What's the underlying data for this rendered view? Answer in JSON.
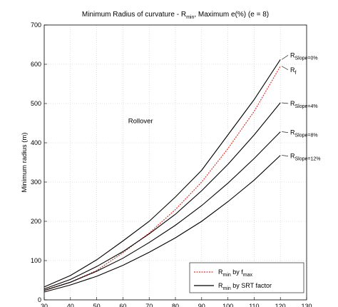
{
  "chart_data": {
    "type": "line",
    "title_parts": [
      "Minimum Radius of curvature - R",
      "min",
      ", Maximum e(%) (e = 8)"
    ],
    "ylabel": "Minimum radius (m)",
    "xlim": [
      30,
      130
    ],
    "ylim": [
      0,
      700
    ],
    "xticks": [
      30,
      40,
      50,
      60,
      70,
      80,
      90,
      100,
      110,
      120,
      130
    ],
    "yticks": [
      0,
      100,
      200,
      300,
      400,
      500,
      600,
      700
    ],
    "grid": true,
    "region_label": "Rollover",
    "series": [
      {
        "key": "f",
        "color": "#e8322a",
        "dashed": true,
        "end_label": [
          "R",
          "f",
          ""
        ],
        "x": [
          30,
          40,
          50,
          60,
          70,
          80,
          90,
          100,
          110,
          120
        ],
        "values": [
          25,
          45,
          75,
          120,
          170,
          230,
          300,
          385,
          480,
          595
        ]
      },
      {
        "key": "slope0",
        "color": "#000000",
        "dashed": false,
        "end_label": [
          "R",
          "Slope=0%",
          ""
        ],
        "x": [
          30,
          40,
          50,
          60,
          70,
          80,
          90,
          100,
          110,
          120
        ],
        "values": [
          33,
          62,
          102,
          150,
          200,
          262,
          330,
          420,
          510,
          612
        ]
      },
      {
        "key": "slope4",
        "color": "#000000",
        "dashed": false,
        "end_label": [
          "R",
          "Slope=4%",
          ""
        ],
        "x": [
          30,
          40,
          50,
          60,
          70,
          80,
          90,
          100,
          110,
          120
        ],
        "values": [
          28,
          52,
          85,
          123,
          168,
          218,
          278,
          345,
          420,
          502
        ]
      },
      {
        "key": "slope8",
        "color": "#000000",
        "dashed": false,
        "end_label": [
          "R",
          "Slope=8%",
          ""
        ],
        "x": [
          30,
          40,
          50,
          60,
          70,
          80,
          90,
          100,
          110,
          120
        ],
        "values": [
          24,
          45,
          73,
          106,
          146,
          190,
          240,
          297,
          360,
          428
        ]
      },
      {
        "key": "slope12",
        "color": "#000000",
        "dashed": false,
        "end_label": [
          "R",
          "Slope=12%",
          ""
        ],
        "x": [
          30,
          40,
          50,
          60,
          70,
          80,
          90,
          100,
          110,
          120
        ],
        "values": [
          20,
          38,
          60,
          88,
          121,
          158,
          200,
          250,
          305,
          368
        ]
      }
    ],
    "legend": {
      "placement": "bottom-right",
      "entries": [
        {
          "color": "#e8322a",
          "dashed": true,
          "text": [
            "R",
            "min",
            " by f",
            "max"
          ]
        },
        {
          "color": "#000000",
          "dashed": false,
          "text": [
            "R",
            "min",
            " by SRT factor",
            ""
          ]
        }
      ]
    }
  }
}
